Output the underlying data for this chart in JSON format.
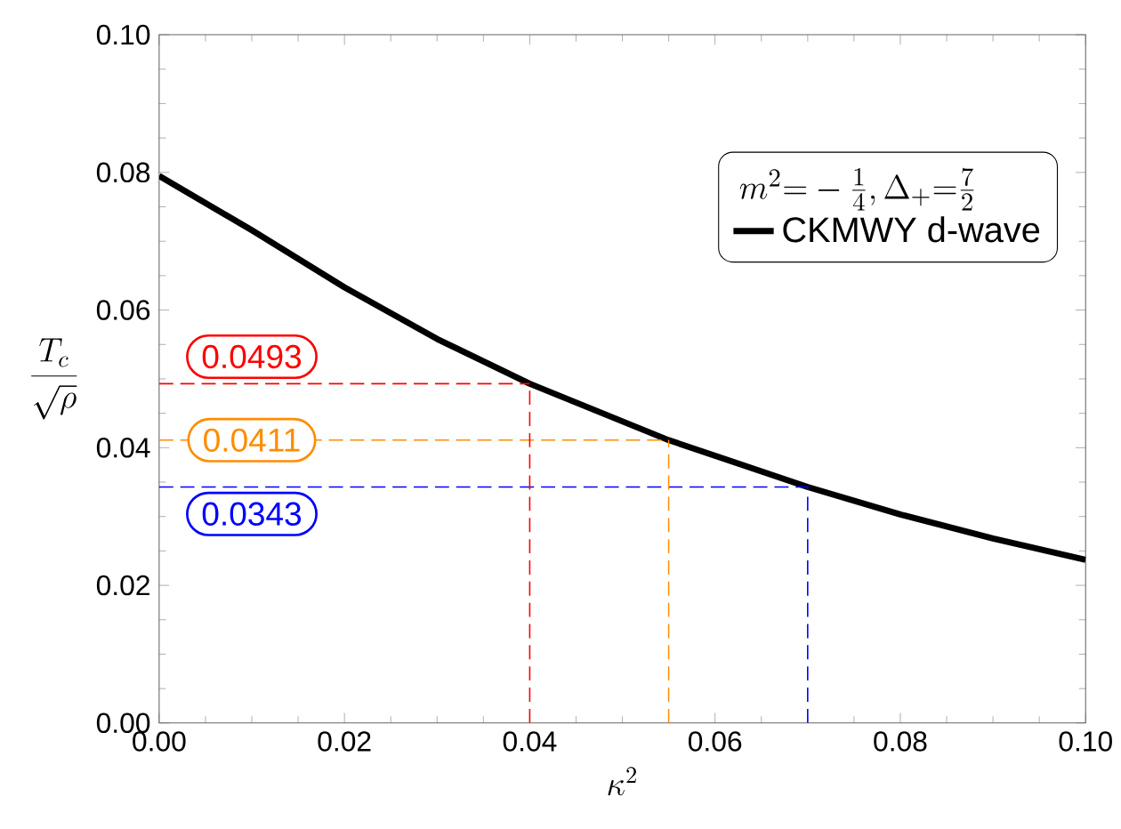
{
  "chart_data": {
    "type": "line",
    "xlabel": "\\kappa^{2}",
    "ylabel": "\\frac{T_c}{\\sqrt{\\rho}}",
    "legend_title": "m^{2}{=}-\\frac{1}{4},\\Delta_{+}{=}\\frac{7}{2}",
    "series": [
      {
        "name": "CKMWY d-wave",
        "color": "#000000",
        "x": [
          0,
          0.01,
          0.02,
          0.03,
          0.04,
          0.055,
          0.07,
          0.08,
          0.09,
          0.1
        ],
        "values": [
          0.0795,
          0.0716,
          0.0633,
          0.0558,
          0.0493,
          0.0411,
          0.0343,
          0.0303,
          0.0268,
          0.0237
        ]
      }
    ],
    "xlim": [
      0,
      0.1
    ],
    "ylim": [
      0,
      0.1
    ],
    "xticks": [
      {
        "value": 0,
        "label": "0.00"
      },
      0.02,
      0.04,
      0.06,
      0.08,
      {
        "value": 0.1,
        "label": "0.10"
      }
    ],
    "yticks": [
      {
        "value": 0,
        "label": "0.00"
      },
      0.02,
      0.04,
      0.06,
      0.08,
      {
        "value": 0.1,
        "label": "0.10"
      }
    ],
    "ref_lines": [
      {
        "axis": "y",
        "value": 0.0493,
        "label": "0.0493",
        "color": "#ff0000",
        "line_style": "dashed"
      },
      {
        "axis": "y",
        "value": 0.0411,
        "label": "0.0411",
        "color": "#ff8c00",
        "line_style": "dashed"
      },
      {
        "axis": "y",
        "value": 0.0343,
        "label": "0.0343",
        "color": "#0000ff",
        "line_style": "dashed"
      },
      {
        "axis": "x",
        "value": 0.04,
        "color": "#ff0000",
        "line_style": "dashed"
      },
      {
        "axis": "x",
        "value": 0.055,
        "color": "#ff8c00",
        "line_style": "dashed"
      },
      {
        "axis": "x",
        "value": 0.07,
        "color": "#0000ff",
        "line_style": "dashed"
      }
    ],
    "legend": "top right",
    "grid": false,
    "marker": "none",
    "line_style": "solid"
  }
}
